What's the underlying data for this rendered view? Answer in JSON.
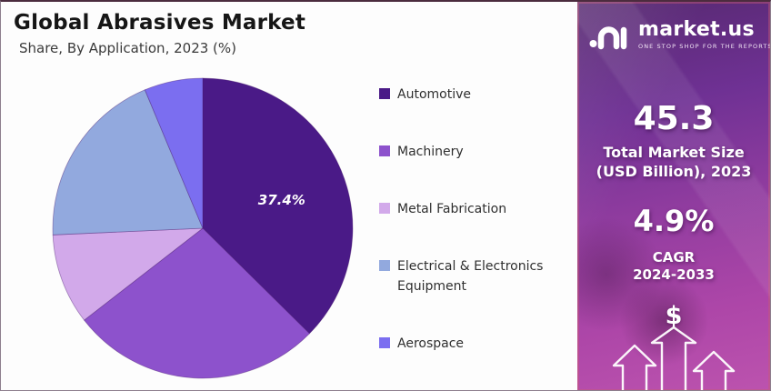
{
  "header": {
    "title": "Global Abrasives Market",
    "subtitle": "Share, By Application, 2023 (%)"
  },
  "chart_data": {
    "type": "pie",
    "title": "Global Abrasives Market",
    "subtitle": "Share, By Application, 2023 (%)",
    "unit": "%",
    "start_angle_deg": 0,
    "direction": "clockwise",
    "legend_position": "right",
    "label_color": "#ffffff",
    "series": [
      {
        "name": "Automotive",
        "value": 37.4,
        "color": "#4a1a87",
        "label": "37.4%"
      },
      {
        "name": "Machinery",
        "value": 27.1,
        "color": "#8d52cc",
        "label": ""
      },
      {
        "name": "Metal Fabrication",
        "value": 9.8,
        "color": "#d2a9ea",
        "label": ""
      },
      {
        "name": "Electrical & Electronics Equipment",
        "value": 19.4,
        "color": "#92a9de",
        "label": ""
      },
      {
        "name": "Aerospace",
        "value": 6.3,
        "color": "#7b6ef0",
        "label": ""
      }
    ]
  },
  "sidebar": {
    "brand": "market.us",
    "tagline": "ONE STOP SHOP FOR THE REPORTS",
    "market_size_value": "45.3",
    "market_size_line1": "Total Market Size",
    "market_size_line2": "(USD Billion), 2023",
    "cagr_value": "4.9%",
    "cagr_label": "CAGR",
    "cagr_period": "2024-2033",
    "dollar_symbol": "$",
    "colors": {
      "gradient_top": "#562970",
      "gradient_mid": "#933da0",
      "gradient_bottom": "#bc53ae"
    }
  }
}
